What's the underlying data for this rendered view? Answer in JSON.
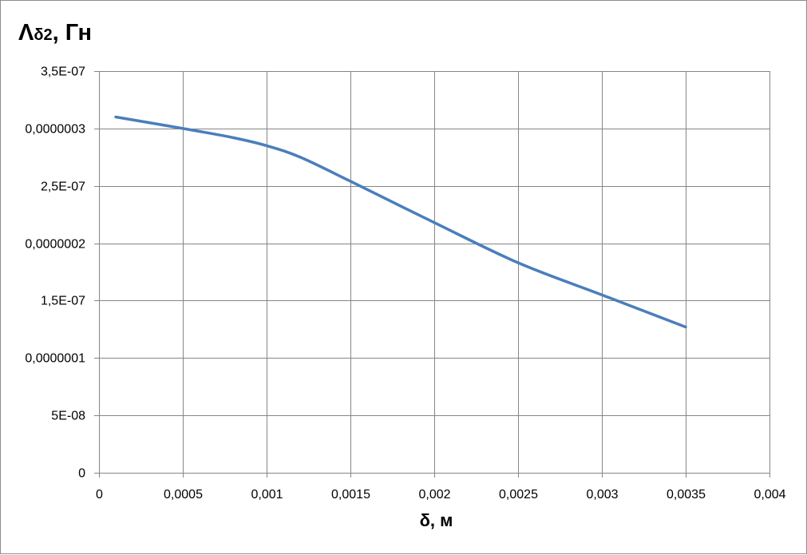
{
  "chart_data": {
    "type": "line",
    "ylabel_parts": {
      "symbol": "Λ",
      "subscript": "δ2",
      "unit": ", Гн"
    },
    "xlabel": "δ, м",
    "xlim": [
      0,
      0.004
    ],
    "ylim": [
      0,
      3.5e-07
    ],
    "x_ticks": [
      0,
      0.0005,
      0.001,
      0.0015,
      0.002,
      0.0025,
      0.003,
      0.0035,
      0.004
    ],
    "x_tick_labels": [
      "0",
      "0,0005",
      "0,001",
      "0,0015",
      "0,002",
      "0,0025",
      "0,003",
      "0,0035",
      "0,004"
    ],
    "y_ticks": [
      0,
      5e-08,
      1e-07,
      1.5e-07,
      2e-07,
      2.5e-07,
      3e-07,
      3.5e-07
    ],
    "y_tick_labels": [
      "0",
      "5E-08",
      "0,0000001",
      "1,5E-07",
      "0,0000002",
      "2,5E-07",
      "0,0000003",
      "3,5E-07"
    ],
    "grid": true,
    "legend": "none",
    "series": [
      {
        "color": "#4a7ebb",
        "x": [
          0.0001,
          0.0005,
          0.0008,
          0.001,
          0.0012,
          0.0015,
          0.002,
          0.0025,
          0.003,
          0.0035
        ],
        "y": [
          3.1e-07,
          3e-07,
          2.92e-07,
          2.85e-07,
          2.75e-07,
          2.54e-07,
          2.18e-07,
          1.83e-07,
          1.55e-07,
          1.27e-07
        ]
      }
    ]
  }
}
